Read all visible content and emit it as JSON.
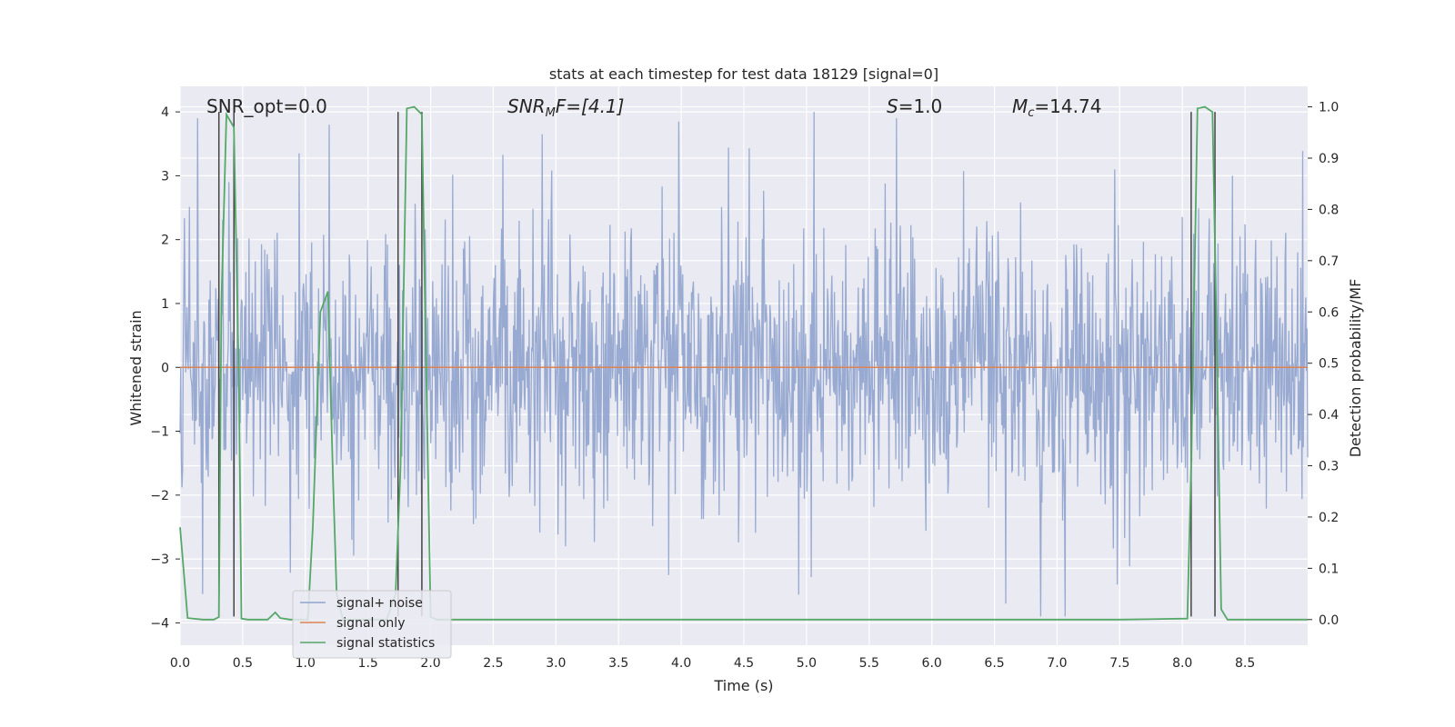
{
  "chart_data": {
    "type": "line",
    "title": "stats at each timestep for test data 18129 [signal=0]",
    "xlabel": "Time (s)",
    "ylabel": "Whitened strain",
    "ylabel_right": "Detection probability/MF",
    "xlim": [
      0.0,
      9.0
    ],
    "ylim": [
      -4.35,
      4.4
    ],
    "ylim_right": [
      -0.05,
      1.04
    ],
    "x_ticks": [
      "0.0",
      "0.5",
      "1.0",
      "1.5",
      "2.0",
      "2.5",
      "3.0",
      "3.5",
      "4.0",
      "4.5",
      "5.0",
      "5.5",
      "6.0",
      "6.5",
      "7.0",
      "7.5",
      "8.0",
      "8.5"
    ],
    "y_ticks": [
      "4",
      "3",
      "2",
      "1",
      "0",
      "−1",
      "−2",
      "−3",
      "−4"
    ],
    "y_ticks_right": [
      "1.0",
      "0.9",
      "0.8",
      "0.7",
      "0.6",
      "0.5",
      "0.4",
      "0.3",
      "0.2",
      "0.1",
      "0.0"
    ],
    "grid": true,
    "legend_position": "lower-left",
    "annotations": {
      "snr_opt": "SNR_opt=0.0",
      "snr_mf_base": "SNR",
      "snr_mf_sub": "M",
      "snr_mf_rest": "F=[4.1]",
      "s_base": "S",
      "s_rest": "=1.0",
      "mc_base": "M",
      "mc_sub": "c",
      "mc_rest": "=14.74"
    },
    "series": [
      {
        "name": "signal+ noise",
        "color": "#8fa3cd",
        "description": "whitened noise, amplitude roughly within ±1.7 with peaks near ±4",
        "peaks": [
          {
            "x": 0.39,
            "y": 2.9
          },
          {
            "x": 0.95,
            "y": 3.35
          },
          {
            "x": 1.19,
            "y": 3.8
          },
          {
            "x": 2.89,
            "y": 3.65
          },
          {
            "x": 3.98,
            "y": 3.85
          },
          {
            "x": 5.06,
            "y": 4.0
          },
          {
            "x": 7.46,
            "y": 3.1
          },
          {
            "x": 0.18,
            "y": -3.55
          },
          {
            "x": 0.43,
            "y": -3.85
          },
          {
            "x": 6.59,
            "y": -3.7
          },
          {
            "x": 3.9,
            "y": -3.25
          },
          {
            "x": 7.48,
            "y": -3.4
          }
        ]
      },
      {
        "name": "signal only",
        "color": "#dd8452",
        "points": [
          [
            0.0,
            0.0
          ],
          [
            9.0,
            0.0
          ]
        ]
      },
      {
        "name": "signal statistics",
        "color": "#55a868",
        "axis": "right",
        "points": [
          [
            0.0,
            0.18
          ],
          [
            0.06,
            0.003
          ],
          [
            0.18,
            0.0
          ],
          [
            0.27,
            0.0
          ],
          [
            0.31,
            0.005
          ],
          [
            0.33,
            0.62
          ],
          [
            0.37,
            0.985
          ],
          [
            0.43,
            0.96
          ],
          [
            0.47,
            0.45
          ],
          [
            0.49,
            0.002
          ],
          [
            0.54,
            0.0
          ],
          [
            0.7,
            0.0
          ],
          [
            0.76,
            0.014
          ],
          [
            0.8,
            0.003
          ],
          [
            0.88,
            0.0
          ],
          [
            1.02,
            0.0
          ],
          [
            1.06,
            0.18
          ],
          [
            1.12,
            0.6
          ],
          [
            1.18,
            0.64
          ],
          [
            1.22,
            0.28
          ],
          [
            1.25,
            0.05
          ],
          [
            1.3,
            0.0
          ],
          [
            1.65,
            0.0
          ],
          [
            1.72,
            0.05
          ],
          [
            1.76,
            0.3
          ],
          [
            1.81,
            0.997
          ],
          [
            1.87,
            1.0
          ],
          [
            1.93,
            0.985
          ],
          [
            1.96,
            0.55
          ],
          [
            2.0,
            0.005
          ],
          [
            2.05,
            0.0
          ],
          [
            6.5,
            0.0
          ],
          [
            7.5,
            0.0
          ],
          [
            8.04,
            0.002
          ],
          [
            8.07,
            0.3
          ],
          [
            8.12,
            0.997
          ],
          [
            8.18,
            1.0
          ],
          [
            8.24,
            0.99
          ],
          [
            8.27,
            0.6
          ],
          [
            8.31,
            0.02
          ],
          [
            8.36,
            0.0
          ],
          [
            9.0,
            0.0
          ]
        ]
      }
    ],
    "vertical_lines": [
      0.31,
      0.43,
      1.74,
      1.93,
      8.07,
      8.26
    ]
  },
  "colors": {
    "axes_bg": "#eaeaf2",
    "grid": "#ffffff",
    "vline": "#444444"
  }
}
